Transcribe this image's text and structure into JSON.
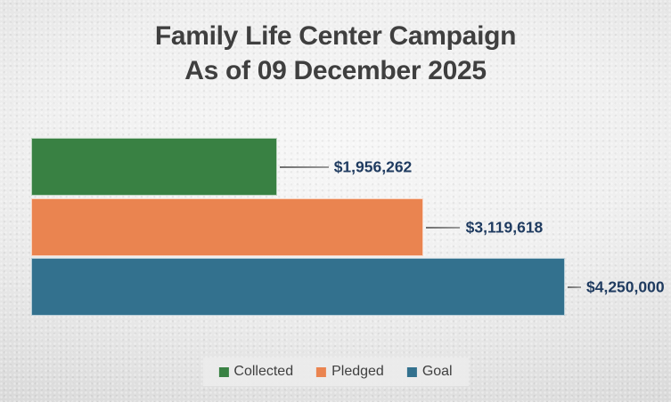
{
  "title": {
    "line1": "Family Life Center Campaign",
    "line2": "As of 09 December 2025"
  },
  "chart_data": {
    "type": "bar",
    "orientation": "horizontal",
    "title": "Family Life Center Campaign",
    "subtitle": "As of 09 December 2025",
    "categories": [
      "Collected",
      "Pledged",
      "Goal"
    ],
    "values": [
      1956262,
      3119618,
      4250000
    ],
    "data_labels": [
      "$1,956,262",
      "$3,119,618",
      "$4,250,000"
    ],
    "bar_colors": [
      "#398143",
      "#EA8450",
      "#33718E"
    ],
    "xlim": [
      0,
      4250000
    ],
    "grid": false,
    "axes_visible": false,
    "data_label_color": "#1f3b60",
    "leader_line_color": "#8a8a8a",
    "legend_position": "bottom"
  },
  "legend": {
    "items": [
      {
        "label": "Collected",
        "color": "#398143"
      },
      {
        "label": "Pledged",
        "color": "#EA8450"
      },
      {
        "label": "Goal",
        "color": "#33718E"
      }
    ]
  }
}
